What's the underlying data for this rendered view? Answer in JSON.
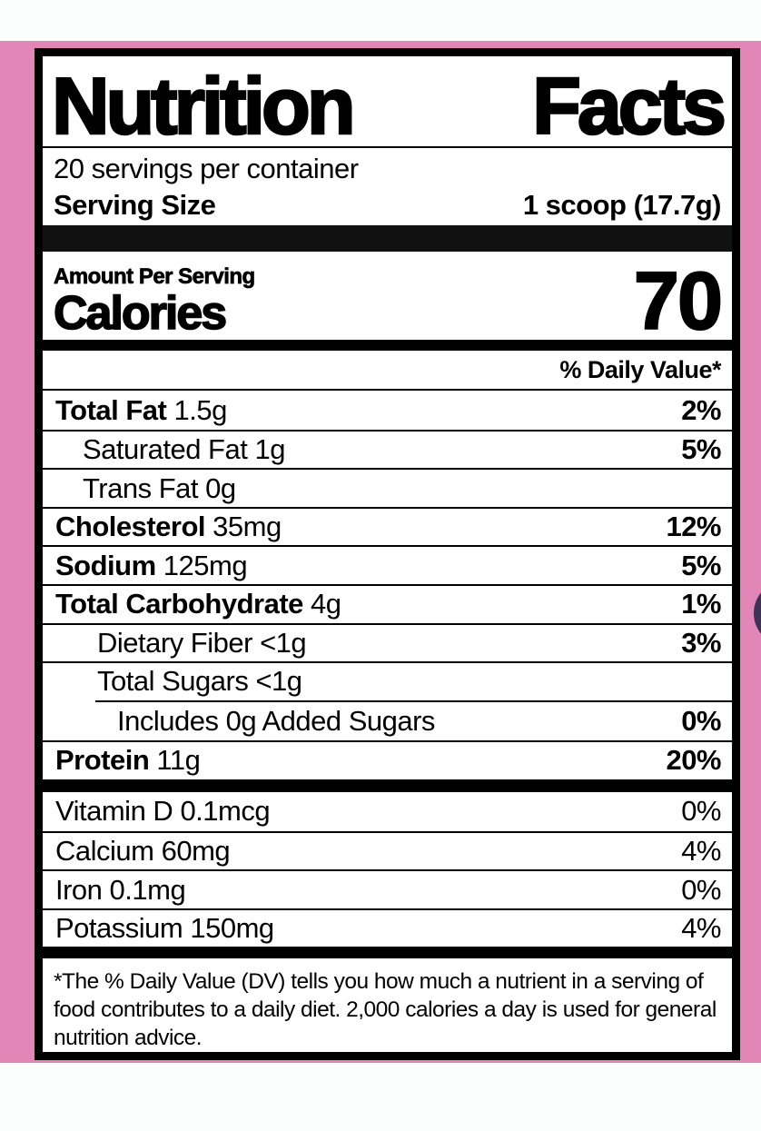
{
  "colors": {
    "background_pink": "#e186b7",
    "label_background": "#ffffff",
    "text_black": "#000000",
    "accent_circle": "#3d3356"
  },
  "label": {
    "title_word1": "Nutrition",
    "title_word2": "Facts",
    "servings_per_container": "20 servings per container",
    "serving_size_label": "Serving Size",
    "serving_size_value": "1 scoop (17.7g)",
    "amount_per_serving": "Amount Per Serving",
    "calories_label": "Calories",
    "calories_value": "70",
    "daily_value_header": "% Daily Value*",
    "nutrients": [
      {
        "name": "Total Fat",
        "amount": "1.5g",
        "dv": "2%"
      },
      {
        "name": "Saturated Fat",
        "amount": "1g",
        "dv": "5%"
      },
      {
        "name": "Trans Fat",
        "amount": "0g",
        "dv": ""
      },
      {
        "name": "Cholesterol",
        "amount": "35mg",
        "dv": "12%"
      },
      {
        "name": "Sodium",
        "amount": "125mg",
        "dv": "5%"
      },
      {
        "name": "Total Carbohydrate",
        "amount": "4g",
        "dv": "1%"
      },
      {
        "name": "Dietary Fiber",
        "amount": "<1g",
        "dv": "3%"
      },
      {
        "name": "Total Sugars",
        "amount": "<1g",
        "dv": ""
      },
      {
        "name": "Includes 0g Added Sugars",
        "amount": "",
        "dv": "0%"
      },
      {
        "name": "Protein",
        "amount": "11g",
        "dv": "20%"
      }
    ],
    "micronutrients": [
      {
        "name": "Vitamin D",
        "amount": "0.1mcg",
        "dv": "0%"
      },
      {
        "name": "Calcium",
        "amount": "60mg",
        "dv": "4%"
      },
      {
        "name": "Iron",
        "amount": "0.1mg",
        "dv": "0%"
      },
      {
        "name": "Potassium",
        "amount": "150mg",
        "dv": "4%"
      }
    ],
    "footnote": "*The % Daily Value (DV) tells you how much a nutrient in a serving of food contributes to a daily diet. 2,000 calories a day is used for general nutrition advice."
  }
}
